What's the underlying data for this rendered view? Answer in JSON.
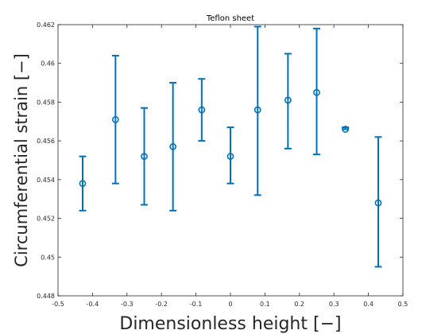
{
  "chart_data": {
    "type": "scatter",
    "title": "Teflon sheet",
    "xlabel": "Dimensionless height [−]",
    "ylabel": "Circumferential strain [−]",
    "xlim": [
      -0.5,
      0.5
    ],
    "ylim": [
      0.448,
      0.462
    ],
    "xticks": [
      -0.5,
      -0.4,
      -0.3,
      -0.2,
      -0.1,
      0,
      0.1,
      0.2,
      0.3,
      0.4,
      0.5
    ],
    "xtick_labels": [
      "-0.5",
      "-0.4",
      "-0.3",
      "-0.2",
      "-0.1",
      "0",
      "0.1",
      "0.2",
      "0.3",
      "0.4",
      "0.5"
    ],
    "yticks": [
      0.448,
      0.45,
      0.452,
      0.454,
      0.456,
      0.458,
      0.46,
      0.462
    ],
    "ytick_labels": [
      "0.448",
      "0.45",
      "0.452",
      "0.454",
      "0.456",
      "0.458",
      "0.46",
      "0.462"
    ],
    "grid": false,
    "marker": "circle",
    "color": "#0072BD",
    "series": [
      {
        "x": [
          -0.4286,
          -0.3333,
          -0.25,
          -0.1667,
          -0.0833,
          0,
          0.0789,
          0.1667,
          0.25,
          0.3333,
          0.4286
        ],
        "y": [
          0.4538,
          0.4571,
          0.4552,
          0.4557,
          0.4576,
          0.4552,
          0.4576,
          0.4581,
          0.4585,
          0.4566,
          0.4528
        ],
        "y_low": [
          0.4524,
          0.4538,
          0.4527,
          0.4524,
          0.456,
          0.4538,
          0.4532,
          0.4556,
          0.4553,
          0.4566,
          0.4495
        ],
        "y_high": [
          0.4552,
          0.4604,
          0.4577,
          0.459,
          0.4592,
          0.4567,
          0.4619,
          0.4605,
          0.4618,
          0.4567,
          0.4562
        ]
      }
    ]
  }
}
